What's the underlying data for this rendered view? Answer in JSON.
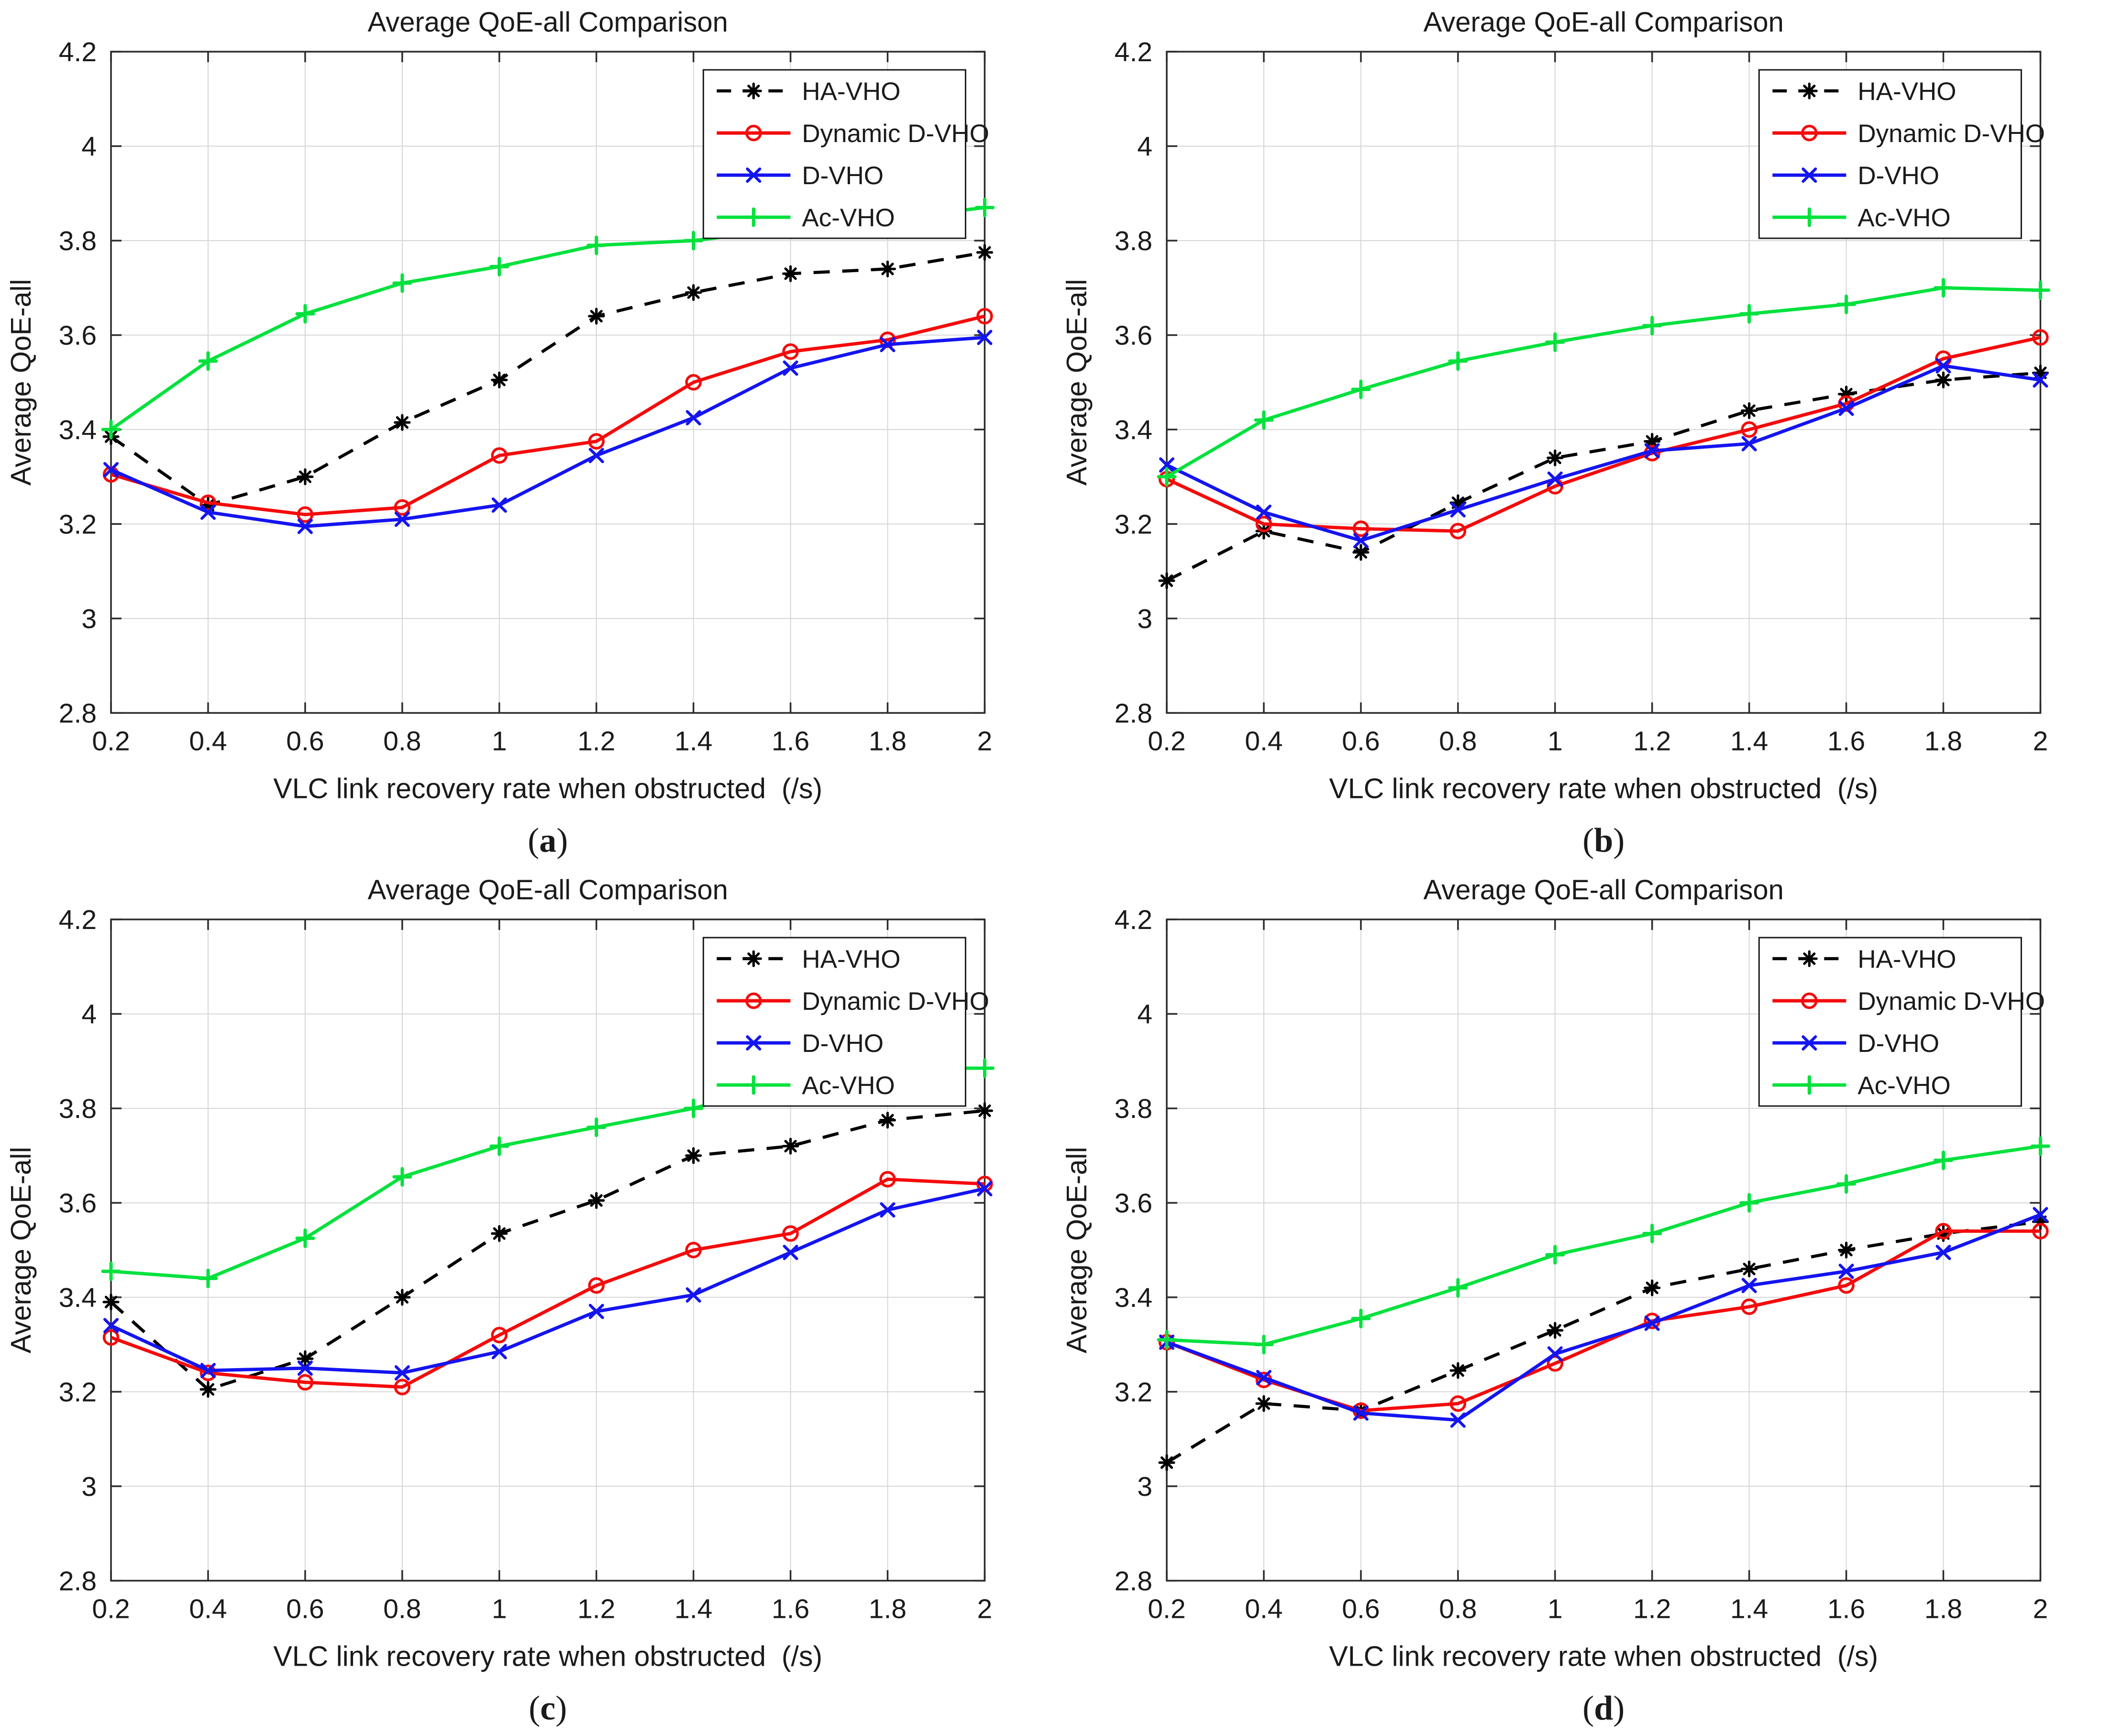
{
  "page": {
    "background": "#ffffff",
    "description": "Four line charts comparing Average QoE-all for vertical handover schemes"
  },
  "palette": {
    "ha_vho": "#000000",
    "dynamic_d_vho": "#f40b0b",
    "d_vho": "#1414f0",
    "ac_vho": "#00e13c",
    "grid": "#d6d6d6",
    "axis": "#2b2b2b",
    "text": "#1a1a1a",
    "legend_border": "#1a1a1a",
    "legend_fill": "#ffffff"
  },
  "chart_data": [
    {
      "type": "line",
      "panel_label": "(a)",
      "panel_letter": "a",
      "title": "Average QoE-all Comparison",
      "xlabel": "VLC link recovery rate when obstructed  (/s)",
      "ylabel": "Average QoE-all",
      "xlim": [
        0.2,
        2
      ],
      "ylim": [
        2.8,
        4.2
      ],
      "xtick_values": [
        0.2,
        0.4,
        0.6,
        0.8,
        1,
        1.2,
        1.4,
        1.6,
        1.8,
        2
      ],
      "xtick_labels": [
        "0.2",
        "0.4",
        "0.6",
        "0.8",
        "1",
        "1.2",
        "1.4",
        "1.6",
        "1.8",
        "2"
      ],
      "ytick_values": [
        2.8,
        3,
        3.2,
        3.4,
        3.6,
        3.8,
        4,
        4.2
      ],
      "ytick_labels": [
        "2.8",
        "3",
        "3.2",
        "3.4",
        "3.6",
        "3.8",
        "4",
        "4.2"
      ],
      "grid": true,
      "legend_position": "top-right",
      "x": [
        0.2,
        0.4,
        0.6,
        0.8,
        1,
        1.2,
        1.4,
        1.6,
        1.8,
        2
      ],
      "series": [
        {
          "name": "HA-VHO",
          "color": "#000000",
          "dash": true,
          "marker": "asterisk",
          "values": [
            3.385,
            3.24,
            3.3,
            3.415,
            3.505,
            3.64,
            3.69,
            3.73,
            3.74,
            3.775
          ]
        },
        {
          "name": "Dynamic D-VHO",
          "color": "#f40b0b",
          "dash": false,
          "marker": "circle",
          "values": [
            3.305,
            3.245,
            3.22,
            3.235,
            3.345,
            3.375,
            3.5,
            3.565,
            3.59,
            3.64
          ]
        },
        {
          "name": "D-VHO",
          "color": "#1414f0",
          "dash": false,
          "marker": "x",
          "values": [
            3.315,
            3.225,
            3.195,
            3.21,
            3.24,
            3.345,
            3.425,
            3.53,
            3.58,
            3.595
          ]
        },
        {
          "name": "Ac-VHO",
          "color": "#00e13c",
          "dash": false,
          "marker": "plus",
          "values": [
            3.4,
            3.545,
            3.645,
            3.71,
            3.745,
            3.79,
            3.8,
            3.825,
            3.845,
            3.87
          ]
        }
      ]
    },
    {
      "type": "line",
      "panel_label": "(b)",
      "panel_letter": "b",
      "title": "Average QoE-all Comparison",
      "xlabel": "VLC link recovery rate when obstructed  (/s)",
      "ylabel": "Average QoE-all",
      "xlim": [
        0.2,
        2
      ],
      "ylim": [
        2.8,
        4.2
      ],
      "xtick_values": [
        0.2,
        0.4,
        0.6,
        0.8,
        1,
        1.2,
        1.4,
        1.6,
        1.8,
        2
      ],
      "xtick_labels": [
        "0.2",
        "0.4",
        "0.6",
        "0.8",
        "1",
        "1.2",
        "1.4",
        "1.6",
        "1.8",
        "2"
      ],
      "ytick_values": [
        2.8,
        3,
        3.2,
        3.4,
        3.6,
        3.8,
        4,
        4.2
      ],
      "ytick_labels": [
        "2.8",
        "3",
        "3.2",
        "3.4",
        "3.6",
        "3.8",
        "4",
        "4.2"
      ],
      "grid": true,
      "legend_position": "top-right",
      "x": [
        0.2,
        0.4,
        0.6,
        0.8,
        1,
        1.2,
        1.4,
        1.6,
        1.8,
        2
      ],
      "series": [
        {
          "name": "HA-VHO",
          "color": "#000000",
          "dash": true,
          "marker": "asterisk",
          "values": [
            3.08,
            3.185,
            3.14,
            3.245,
            3.34,
            3.375,
            3.44,
            3.475,
            3.505,
            3.52
          ]
        },
        {
          "name": "Dynamic D-VHO",
          "color": "#f40b0b",
          "dash": false,
          "marker": "circle",
          "values": [
            3.295,
            3.2,
            3.19,
            3.185,
            3.28,
            3.35,
            3.4,
            3.455,
            3.55,
            3.595
          ]
        },
        {
          "name": "D-VHO",
          "color": "#1414f0",
          "dash": false,
          "marker": "x",
          "values": [
            3.325,
            3.225,
            3.165,
            3.23,
            3.295,
            3.355,
            3.37,
            3.445,
            3.535,
            3.505
          ]
        },
        {
          "name": "Ac-VHO",
          "color": "#00e13c",
          "dash": false,
          "marker": "plus",
          "values": [
            3.3,
            3.42,
            3.485,
            3.545,
            3.585,
            3.62,
            3.645,
            3.665,
            3.7,
            3.695
          ]
        }
      ]
    },
    {
      "type": "line",
      "panel_label": "(c)",
      "panel_letter": "c",
      "title": "Average QoE-all Comparison",
      "xlabel": "VLC link recovery rate when obstructed  (/s)",
      "ylabel": "Average QoE-all",
      "xlim": [
        0.2,
        2
      ],
      "ylim": [
        2.8,
        4.2
      ],
      "xtick_values": [
        0.2,
        0.4,
        0.6,
        0.8,
        1,
        1.2,
        1.4,
        1.6,
        1.8,
        2
      ],
      "xtick_labels": [
        "0.2",
        "0.4",
        "0.6",
        "0.8",
        "1",
        "1.2",
        "1.4",
        "1.6",
        "1.8",
        "2"
      ],
      "ytick_values": [
        2.8,
        3,
        3.2,
        3.4,
        3.6,
        3.8,
        4,
        4.2
      ],
      "ytick_labels": [
        "2.8",
        "3",
        "3.2",
        "3.4",
        "3.6",
        "3.8",
        "4",
        "4.2"
      ],
      "grid": true,
      "legend_position": "top-right",
      "x": [
        0.2,
        0.4,
        0.6,
        0.8,
        1,
        1.2,
        1.4,
        1.6,
        1.8,
        2
      ],
      "series": [
        {
          "name": "HA-VHO",
          "color": "#000000",
          "dash": true,
          "marker": "asterisk",
          "values": [
            3.39,
            3.205,
            3.27,
            3.4,
            3.535,
            3.605,
            3.7,
            3.72,
            3.775,
            3.795
          ]
        },
        {
          "name": "Dynamic D-VHO",
          "color": "#f40b0b",
          "dash": false,
          "marker": "circle",
          "values": [
            3.315,
            3.24,
            3.22,
            3.21,
            3.32,
            3.425,
            3.5,
            3.535,
            3.65,
            3.64
          ]
        },
        {
          "name": "D-VHO",
          "color": "#1414f0",
          "dash": false,
          "marker": "x",
          "values": [
            3.34,
            3.245,
            3.25,
            3.24,
            3.285,
            3.37,
            3.405,
            3.495,
            3.585,
            3.63
          ]
        },
        {
          "name": "Ac-VHO",
          "color": "#00e13c",
          "dash": false,
          "marker": "plus",
          "values": [
            3.455,
            3.44,
            3.525,
            3.655,
            3.72,
            3.76,
            3.8,
            3.855,
            3.885,
            3.885
          ]
        }
      ]
    },
    {
      "type": "line",
      "panel_label": "(d)",
      "panel_letter": "d",
      "title": "Average QoE-all Comparison",
      "xlabel": "VLC link recovery rate when obstructed  (/s)",
      "ylabel": "Average QoE-all",
      "xlim": [
        0.2,
        2
      ],
      "ylim": [
        2.8,
        4.2
      ],
      "xtick_values": [
        0.2,
        0.4,
        0.6,
        0.8,
        1,
        1.2,
        1.4,
        1.6,
        1.8,
        2
      ],
      "xtick_labels": [
        "0.2",
        "0.4",
        "0.6",
        "0.8",
        "1",
        "1.2",
        "1.4",
        "1.6",
        "1.8",
        "2"
      ],
      "ytick_values": [
        2.8,
        3,
        3.2,
        3.4,
        3.6,
        3.8,
        4,
        4.2
      ],
      "ytick_labels": [
        "2.8",
        "3",
        "3.2",
        "3.4",
        "3.6",
        "3.8",
        "4",
        "4.2"
      ],
      "grid": true,
      "legend_position": "top-right",
      "x": [
        0.2,
        0.4,
        0.6,
        0.8,
        1,
        1.2,
        1.4,
        1.6,
        1.8,
        2
      ],
      "series": [
        {
          "name": "HA-VHO",
          "color": "#000000",
          "dash": true,
          "marker": "asterisk",
          "values": [
            3.05,
            3.175,
            3.16,
            3.245,
            3.33,
            3.42,
            3.46,
            3.5,
            3.535,
            3.56
          ]
        },
        {
          "name": "Dynamic D-VHO",
          "color": "#f40b0b",
          "dash": false,
          "marker": "circle",
          "values": [
            3.305,
            3.225,
            3.16,
            3.175,
            3.26,
            3.35,
            3.38,
            3.425,
            3.54,
            3.54
          ]
        },
        {
          "name": "D-VHO",
          "color": "#1414f0",
          "dash": false,
          "marker": "x",
          "values": [
            3.305,
            3.23,
            3.155,
            3.14,
            3.28,
            3.345,
            3.425,
            3.455,
            3.495,
            3.575
          ]
        },
        {
          "name": "Ac-VHO",
          "color": "#00e13c",
          "dash": false,
          "marker": "plus",
          "values": [
            3.31,
            3.3,
            3.355,
            3.42,
            3.49,
            3.535,
            3.6,
            3.64,
            3.69,
            3.72
          ]
        }
      ]
    }
  ]
}
